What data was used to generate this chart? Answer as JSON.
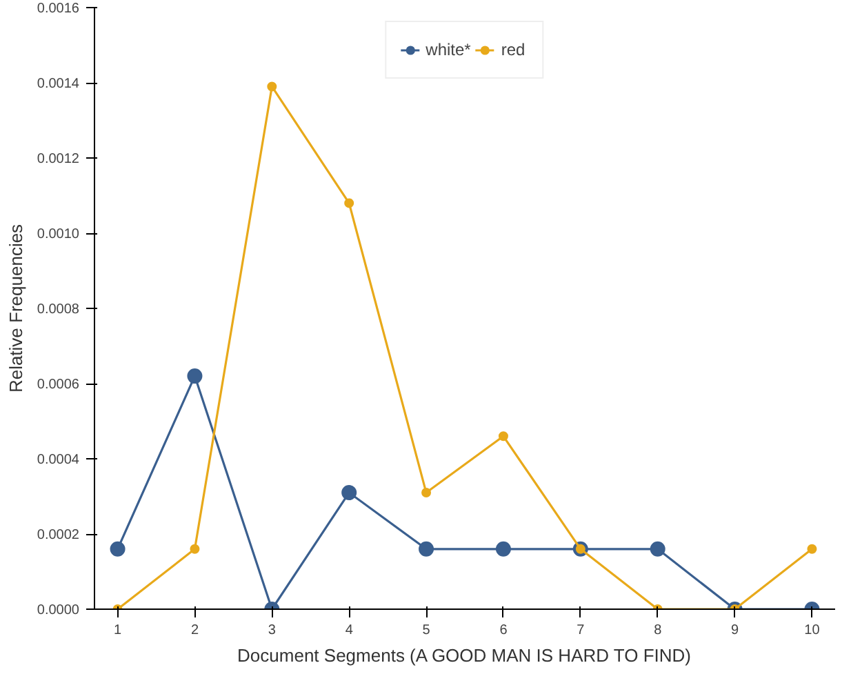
{
  "chart_data": {
    "type": "line",
    "xlabel": "Document Segments (A GOOD MAN IS HARD TO FIND)",
    "ylabel": "Relative Frequencies",
    "x": [
      1,
      2,
      3,
      4,
      5,
      6,
      7,
      8,
      9,
      10
    ],
    "series": [
      {
        "name": "white*",
        "color": "#3a5f8f",
        "values": [
          0.00016,
          0.00062,
          0,
          0.00031,
          0.00016,
          0.00016,
          0.00016,
          0.00016,
          0,
          0
        ]
      },
      {
        "name": "red",
        "color": "#e8a91a",
        "values": [
          0,
          0.00016,
          0.00139,
          0.00108,
          0.00031,
          0.00046,
          0.00016,
          0,
          0,
          0.00016
        ]
      }
    ],
    "xlim": [
      0.7,
      10.3
    ],
    "xticks": [
      1,
      2,
      3,
      4,
      5,
      6,
      7,
      8,
      9,
      10
    ],
    "ylim": [
      0,
      0.0016
    ],
    "yticks": [
      {
        "value": 0,
        "label": "0.0000"
      },
      {
        "value": 0.0002,
        "label": "0.0002"
      },
      {
        "value": 0.0004,
        "label": "0.0004"
      },
      {
        "value": 0.0006,
        "label": "0.0006"
      },
      {
        "value": 0.0008,
        "label": "0.0008"
      },
      {
        "value": 0.001,
        "label": "0.0010"
      },
      {
        "value": 0.0012,
        "label": "0.0012"
      },
      {
        "value": 0.0014,
        "label": "0.0014"
      },
      {
        "value": 0.0016,
        "label": "0.0016"
      }
    ],
    "legend": "top",
    "marker": "circle",
    "grid": false
  }
}
